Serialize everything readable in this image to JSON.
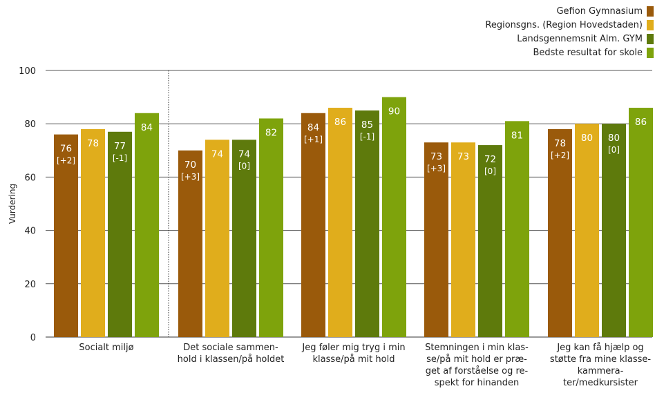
{
  "chart_data": {
    "type": "bar",
    "ylabel": "Vurdering",
    "ylim": [
      0,
      100
    ],
    "yticks": [
      0,
      20,
      40,
      60,
      80,
      100
    ],
    "grid": true,
    "legend_position": "top-right",
    "categories": [
      [
        "Socialt miljø"
      ],
      [
        "Det sociale sammen-",
        "hold i klassen/på holdet"
      ],
      [
        "Jeg føler mig tryg i min",
        "klasse/på mit hold"
      ],
      [
        "Stemningen i min klas-",
        "se/på mit hold er præ-",
        "get af forståelse og re-",
        "spekt for hinanden"
      ],
      [
        "Jeg kan få hjælp og",
        "støtte fra mine klasse-",
        "kammera-",
        "ter/medkursister"
      ]
    ],
    "series": [
      {
        "name": "Gefion Gymnasium",
        "color": "#9a5a0b",
        "values": [
          76,
          70,
          84,
          73,
          78
        ],
        "labels": [
          "76",
          "70",
          "84",
          "73",
          "78"
        ],
        "diffs": [
          "[+2]",
          "[+3]",
          "[+1]",
          "[+3]",
          "[+2]"
        ]
      },
      {
        "name": "Regionsgns. (Region Hovedstaden)",
        "color": "#e0ad1c",
        "values": [
          78,
          74,
          86,
          73,
          80
        ],
        "labels": [
          "78",
          "74",
          "86",
          "73",
          "80"
        ],
        "diffs": [
          "",
          "",
          "",
          "",
          ""
        ]
      },
      {
        "name": "Landsgennemsnit Alm. GYM",
        "color": "#5e7a0c",
        "values": [
          77,
          74,
          85,
          72,
          80
        ],
        "labels": [
          "77",
          "74",
          "85",
          "72",
          "80"
        ],
        "diffs": [
          "[-1]",
          "[0]",
          "[-1]",
          "[0]",
          "[0]"
        ]
      },
      {
        "name": "Bedste resultat for skole",
        "color": "#7ea30c",
        "values": [
          84,
          82,
          90,
          81,
          86
        ],
        "labels": [
          "84",
          "82",
          "90",
          "81",
          "86"
        ],
        "diffs": [
          "",
          "",
          "",
          "",
          ""
        ]
      }
    ]
  }
}
